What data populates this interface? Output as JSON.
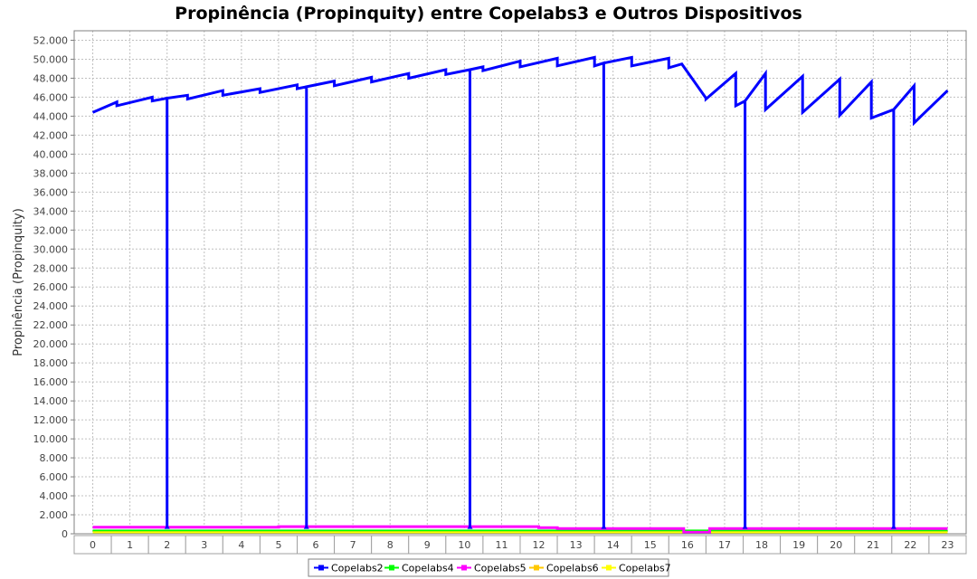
{
  "chart_data": {
    "type": "line",
    "title": "Propinência (Propinquity) entre Copelabs3 e Outros Dispositivos",
    "ylabel": "Propinência (Propinquity)",
    "xlabel": "",
    "ylim": [
      0,
      53000
    ],
    "yticks": [
      0,
      2000,
      4000,
      6000,
      8000,
      10000,
      12000,
      14000,
      16000,
      18000,
      20000,
      22000,
      24000,
      26000,
      28000,
      30000,
      32000,
      34000,
      36000,
      38000,
      40000,
      42000,
      44000,
      46000,
      48000,
      50000,
      52000
    ],
    "ytick_labels": [
      "0",
      "2.000",
      "4.000",
      "6.000",
      "8.000",
      "10.000",
      "12.000",
      "14.000",
      "16.000",
      "18.000",
      "20.000",
      "22.000",
      "24.000",
      "26.000",
      "28.000",
      "30.000",
      "32.000",
      "34.000",
      "36.000",
      "38.000",
      "40.000",
      "42.000",
      "44.000",
      "46.000",
      "48.000",
      "50.000",
      "52.000"
    ],
    "categories": [
      "0",
      "1",
      "2",
      "3",
      "4",
      "5",
      "6",
      "7",
      "8",
      "9",
      "10",
      "11",
      "12",
      "13",
      "14",
      "15",
      "16",
      "17",
      "18",
      "19",
      "20",
      "21",
      "22",
      "23"
    ],
    "grid": true,
    "legend_position": "bottom",
    "series": [
      {
        "name": "Copelabs2",
        "color": "#0000ff",
        "points": [
          [
            0,
            44400
          ],
          [
            0.65,
            45500
          ],
          [
            0.65,
            45100
          ],
          [
            1.6,
            46000
          ],
          [
            1.6,
            45600
          ],
          [
            2.0,
            45900
          ],
          [
            2.0,
            700
          ],
          [
            2.0,
            45900
          ],
          [
            2.55,
            46200
          ],
          [
            2.55,
            45800
          ],
          [
            3.5,
            46700
          ],
          [
            3.5,
            46200
          ],
          [
            4.5,
            46900
          ],
          [
            4.5,
            46500
          ],
          [
            5.5,
            47300
          ],
          [
            5.5,
            46900
          ],
          [
            5.75,
            47100
          ],
          [
            5.75,
            700
          ],
          [
            5.75,
            47100
          ],
          [
            6.5,
            47700
          ],
          [
            6.5,
            47200
          ],
          [
            7.5,
            48100
          ],
          [
            7.5,
            47600
          ],
          [
            8.5,
            48500
          ],
          [
            8.5,
            48000
          ],
          [
            9.5,
            48900
          ],
          [
            9.5,
            48400
          ],
          [
            10.15,
            48900
          ],
          [
            10.15,
            700
          ],
          [
            10.15,
            48900
          ],
          [
            10.5,
            49200
          ],
          [
            10.5,
            48800
          ],
          [
            11.5,
            49800
          ],
          [
            11.5,
            49200
          ],
          [
            12.5,
            50100
          ],
          [
            12.5,
            49300
          ],
          [
            13.5,
            50200
          ],
          [
            13.5,
            49300
          ],
          [
            13.75,
            49600
          ],
          [
            13.75,
            700
          ],
          [
            13.75,
            49600
          ],
          [
            14.5,
            50200
          ],
          [
            14.5,
            49300
          ],
          [
            15.5,
            50100
          ],
          [
            15.5,
            49100
          ],
          [
            15.85,
            49500
          ],
          [
            16.5,
            45900
          ],
          [
            16.5,
            45800
          ],
          [
            17.3,
            48500
          ],
          [
            17.3,
            45100
          ],
          [
            17.55,
            45600
          ],
          [
            17.55,
            700
          ],
          [
            17.55,
            45600
          ],
          [
            18.1,
            48500
          ],
          [
            18.1,
            44700
          ],
          [
            19.1,
            48200
          ],
          [
            19.1,
            44400
          ],
          [
            20.1,
            47900
          ],
          [
            20.1,
            44100
          ],
          [
            20.95,
            47600
          ],
          [
            20.95,
            43800
          ],
          [
            21.55,
            44700
          ],
          [
            21.55,
            700
          ],
          [
            21.55,
            44700
          ],
          [
            22.1,
            47200
          ],
          [
            22.1,
            43300
          ],
          [
            23.0,
            46700
          ]
        ]
      },
      {
        "name": "Copelabs4",
        "color": "#00ff00",
        "points": [
          [
            0,
            200
          ],
          [
            23.0,
            200
          ]
        ]
      },
      {
        "name": "Copelabs5",
        "color": "#ff00ff",
        "points": [
          [
            0,
            700
          ],
          [
            5.0,
            700
          ],
          [
            5.0,
            750
          ],
          [
            12.0,
            750
          ],
          [
            12.0,
            650
          ],
          [
            12.5,
            650
          ],
          [
            12.5,
            550
          ],
          [
            15.9,
            550
          ],
          [
            15.9,
            150
          ],
          [
            16.6,
            150
          ],
          [
            16.6,
            550
          ],
          [
            23.0,
            550
          ]
        ]
      },
      {
        "name": "Copelabs6",
        "color": "#ffc800",
        "points": [
          [
            0,
            120
          ],
          [
            23.0,
            120
          ]
        ]
      },
      {
        "name": "Copelabs7",
        "color": "#ffff00",
        "points": [
          [
            0,
            100
          ],
          [
            23.0,
            100
          ]
        ]
      }
    ]
  }
}
